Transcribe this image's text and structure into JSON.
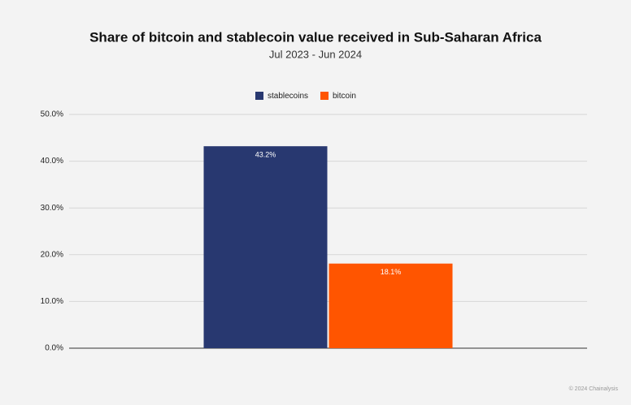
{
  "chart_data": {
    "type": "bar",
    "title": "Share of bitcoin and stablecoin value received in Sub-Saharan Africa",
    "subtitle": "Jul 2023 - Jun 2024",
    "categories": [
      null
    ],
    "series": [
      {
        "name": "stablecoins",
        "color": "#283870",
        "values": [
          43.2
        ],
        "value_labels": [
          "43.2%"
        ]
      },
      {
        "name": "bitcoin",
        "color": "#ff5500",
        "values": [
          18.1
        ],
        "value_labels": [
          "18.1%"
        ]
      }
    ],
    "ylim": [
      0,
      50
    ],
    "yticks": [
      {
        "value": 0,
        "label": "0.0%"
      },
      {
        "value": 10,
        "label": "10.0%"
      },
      {
        "value": 20,
        "label": "20.0%"
      },
      {
        "value": 30,
        "label": "30.0%"
      },
      {
        "value": 40,
        "label": "40.0%"
      },
      {
        "value": 50,
        "label": "50.0%"
      }
    ],
    "grid": true,
    "legend": "top",
    "footer": "© 2024 Chainalysis"
  }
}
